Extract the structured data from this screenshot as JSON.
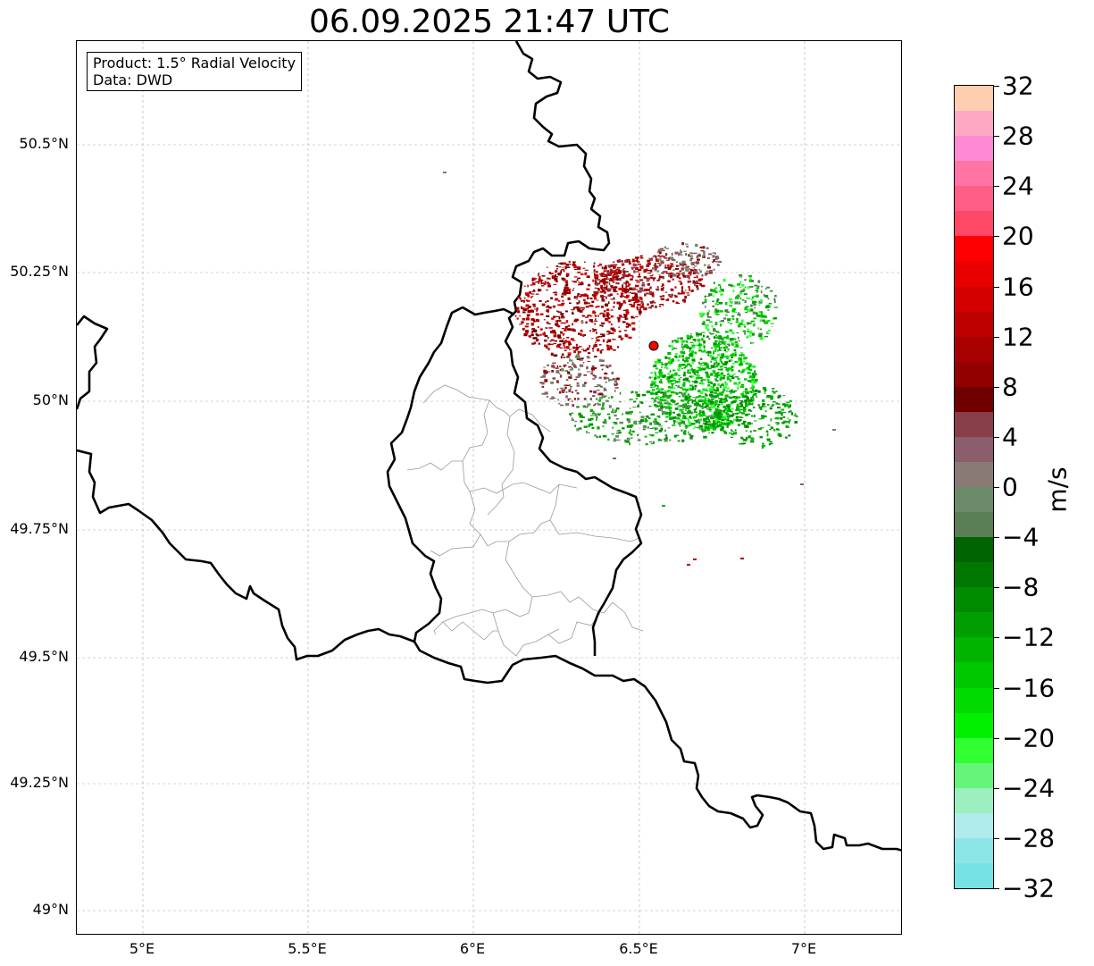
{
  "title": "06.09.2025 21:47 UTC",
  "info": {
    "product": "Product: 1.5° Radial Velocity",
    "source": "Data: DWD"
  },
  "map": {
    "lon_range": [
      4.8,
      7.3
    ],
    "lat_range": [
      48.95,
      50.7
    ],
    "lat_ticks": [
      "50.5°N",
      "50.25°N",
      "50°N",
      "49.75°N",
      "49.5°N",
      "49.25°N",
      "49°N"
    ],
    "lon_ticks": [
      "5°E",
      "5.5°E",
      "6°E",
      "6.5°E",
      "7°E"
    ],
    "gridlines": true,
    "radar_site": {
      "lon": 6.548,
      "lat": 50.11,
      "color": "#ff0000"
    }
  },
  "colorbar": {
    "label": "m/s",
    "min": -32,
    "max": 32,
    "tick_labels": [
      "32",
      "28",
      "24",
      "20",
      "16",
      "12",
      "8",
      "4",
      "0",
      "−4",
      "−8",
      "−12",
      "−16",
      "−20",
      "−24",
      "−28",
      "−32"
    ],
    "colors_top_to_bottom": [
      "#ffcdb0",
      "#ffa8c4",
      "#ff8ad4",
      "#ff74a4",
      "#ff5e86",
      "#ff4766",
      "#ff0000",
      "#e80000",
      "#d40000",
      "#be0000",
      "#a80000",
      "#920000",
      "#700000",
      "#883e48",
      "#8a5e6c",
      "#8a7a76",
      "#6a8a6a",
      "#5a7e56",
      "#006400",
      "#007800",
      "#008c00",
      "#009e00",
      "#00b400",
      "#00c800",
      "#00dc00",
      "#00f000",
      "#30ff30",
      "#66f57a",
      "#9cf0c0",
      "#b0ecec",
      "#8ce6e8",
      "#76e2e6"
    ]
  }
}
